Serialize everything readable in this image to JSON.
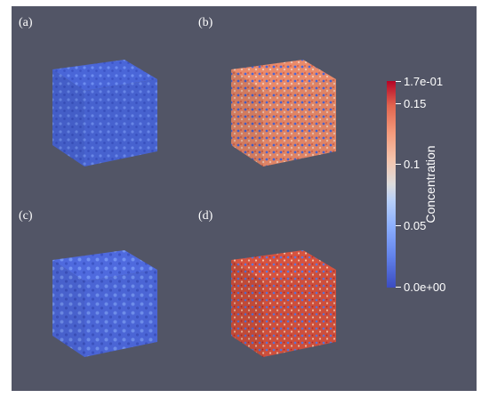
{
  "panels": {
    "a": {
      "label": "(a)"
    },
    "b": {
      "label": "(b)"
    },
    "c": {
      "label": "(c)"
    },
    "d": {
      "label": "(d)"
    }
  },
  "colorbar": {
    "title": "Concentration",
    "max_label": "1.7e-01",
    "min_label": "0.0e+00",
    "ticks": [
      "0.15",
      "0.1",
      "0.05"
    ],
    "colormap": [
      "#3b4cc0",
      "#6282ea",
      "#8db0fe",
      "#b8d0f9",
      "#dddcdc",
      "#f5c4ac",
      "#f49a7b",
      "#e0654f",
      "#b40426"
    ]
  },
  "colors": {
    "background": "#525566",
    "low": "#3b4cc0",
    "high": "#b40426"
  }
}
